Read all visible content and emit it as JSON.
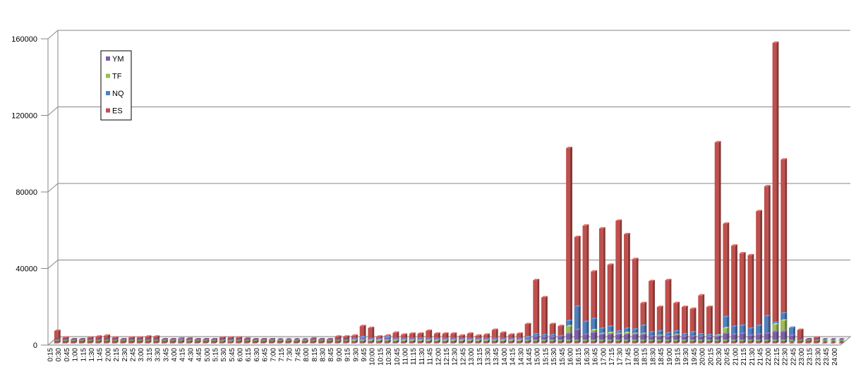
{
  "chart_data": {
    "type": "bar",
    "variant": "3d-clustered-column",
    "ylim": [
      0,
      160000
    ],
    "yticks": [
      0,
      40000,
      80000,
      120000,
      160000
    ],
    "grid": true,
    "legend_position": "top-left",
    "categories": [
      "0:15",
      "0:30",
      "0:45",
      "1:00",
      "1:15",
      "1:30",
      "1:45",
      "2:00",
      "2:15",
      "2:30",
      "2:45",
      "3:00",
      "3:15",
      "3:30",
      "3:45",
      "4:00",
      "4:15",
      "4:30",
      "4:45",
      "5:00",
      "5:15",
      "5:30",
      "5:45",
      "6:00",
      "6:15",
      "6:30",
      "6:45",
      "7:00",
      "7:15",
      "7:30",
      "7:45",
      "8:00",
      "8:15",
      "8:30",
      "8:45",
      "9:00",
      "9:15",
      "9:30",
      "9:45",
      "10:00",
      "10:15",
      "10:30",
      "10:45",
      "11:00",
      "11:15",
      "11:30",
      "11:45",
      "12:00",
      "12:15",
      "12:30",
      "12:45",
      "13:00",
      "13:15",
      "13:30",
      "13:45",
      "14:00",
      "14:15",
      "14:30",
      "14:45",
      "15:00",
      "15:15",
      "15:30",
      "15:45",
      "16:00",
      "16:15",
      "16:30",
      "16:45",
      "17:00",
      "17:15",
      "17:30",
      "17:45",
      "18:00",
      "18:15",
      "18:30",
      "18:45",
      "19:00",
      "19:15",
      "19:30",
      "19:45",
      "20:00",
      "20:15",
      "20:30",
      "20:45",
      "21:00",
      "21:15",
      "21:30",
      "21:45",
      "22:00",
      "22:15",
      "22:30",
      "22:45",
      "23:00",
      "23:15",
      "23:30",
      "23:45",
      "24:00"
    ],
    "series": [
      {
        "name": "YM",
        "color": "#7c5fa8",
        "values": [
          0,
          0,
          0,
          0,
          0,
          0,
          0,
          0,
          0,
          0,
          0,
          0,
          0,
          0,
          0,
          300,
          0,
          0,
          0,
          0,
          0,
          0,
          0,
          0,
          0,
          0,
          0,
          0,
          0,
          0,
          0,
          0,
          0,
          0,
          0,
          0,
          300,
          500,
          300,
          200,
          600,
          300,
          300,
          300,
          300,
          300,
          300,
          300,
          300,
          300,
          300,
          300,
          300,
          400,
          300,
          300,
          300,
          500,
          1500,
          1200,
          1200,
          1500,
          3000,
          5000,
          2500,
          3500,
          2500,
          2500,
          2500,
          2500,
          2500,
          2500,
          1500,
          1500,
          1500,
          2000,
          1500,
          1500,
          1500,
          1200,
          1500,
          3000,
          2500,
          3000,
          2000,
          2500,
          3000,
          4000,
          4000,
          2000,
          0,
          0,
          0,
          0,
          0,
          0
        ]
      },
      {
        "name": "TF",
        "color": "#9bbb59",
        "values": [
          0,
          0,
          0,
          0,
          0,
          0,
          0,
          0,
          0,
          0,
          0,
          0,
          0,
          0,
          0,
          0,
          0,
          0,
          0,
          0,
          0,
          0,
          0,
          0,
          0,
          0,
          0,
          0,
          0,
          0,
          0,
          0,
          0,
          0,
          0,
          0,
          200,
          300,
          200,
          200,
          300,
          200,
          200,
          200,
          200,
          200,
          200,
          200,
          200,
          200,
          200,
          200,
          200,
          300,
          200,
          200,
          200,
          400,
          800,
          600,
          600,
          900,
          7500,
          5000,
          2500,
          5500,
          3500,
          4000,
          3500,
          4000,
          3500,
          3500,
          1500,
          2500,
          2000,
          3000,
          2000,
          2000,
          2000,
          1500,
          2500,
          6500,
          3000,
          3500,
          2500,
          3000,
          3500,
          8500,
          10500,
          2500,
          0,
          0,
          0,
          0,
          0,
          0
        ]
      },
      {
        "name": "NQ",
        "color": "#4f81bd",
        "values": [
          0,
          0,
          0,
          0,
          0,
          0,
          0,
          0,
          0,
          0,
          0,
          0,
          0,
          0,
          0,
          1000,
          500,
          0,
          0,
          0,
          500,
          300,
          0,
          0,
          0,
          0,
          0,
          0,
          0,
          0,
          0,
          0,
          0,
          0,
          0,
          0,
          1500,
          2500,
          1500,
          1200,
          2500,
          1500,
          1500,
          1500,
          1800,
          1500,
          1500,
          1500,
          1500,
          1200,
          1500,
          1200,
          1300,
          1500,
          1200,
          1200,
          1200,
          2500,
          4000,
          3500,
          3500,
          3000,
          11000,
          18500,
          10500,
          12000,
          7000,
          8000,
          5500,
          7000,
          6500,
          8500,
          5000,
          5500,
          4500,
          5500,
          4000,
          5000,
          4000,
          3500,
          3500,
          13000,
          8000,
          8500,
          7000,
          8500,
          13500,
          10000,
          15000,
          7500,
          0,
          0,
          0,
          0,
          0,
          0
        ]
      },
      {
        "name": "ES",
        "color": "#c0504d",
        "values": [
          6500,
          3000,
          2000,
          2000,
          3000,
          3500,
          4000,
          3000,
          2000,
          3000,
          3000,
          3500,
          3500,
          2000,
          2000,
          2500,
          2500,
          2000,
          2000,
          2000,
          3000,
          3000,
          3000,
          2500,
          2000,
          2000,
          2000,
          1500,
          1500,
          1500,
          1500,
          2500,
          2000,
          2000,
          3500,
          3500,
          4000,
          9000,
          8000,
          3500,
          4000,
          5500,
          4500,
          5000,
          5000,
          6500,
          5000,
          5000,
          5000,
          4000,
          5000,
          4000,
          4500,
          7000,
          5500,
          4500,
          5000,
          10000,
          33000,
          24000,
          10000,
          9000,
          102000,
          55500,
          61500,
          37500,
          60000,
          41000,
          64000,
          57000,
          44000,
          21000,
          32500,
          19000,
          33000,
          21000,
          19000,
          18000,
          25000,
          19000,
          105000,
          62500,
          51000,
          47000,
          46000,
          69000,
          82000,
          157000,
          96000,
          0,
          7000,
          2000,
          3000,
          0,
          0,
          0
        ]
      }
    ]
  }
}
